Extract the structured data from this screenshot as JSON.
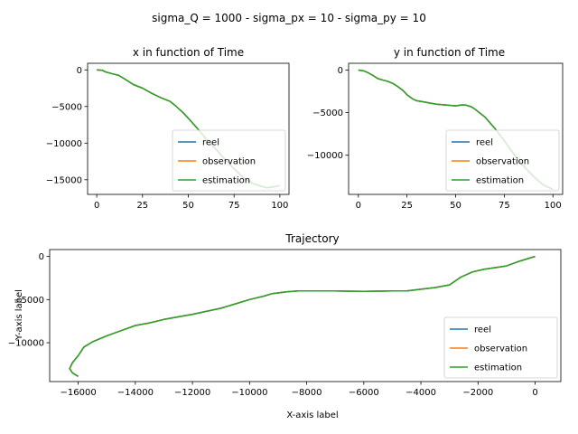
{
  "figure": {
    "suptitle": "sigma_Q = 1000 - sigma_px = 10 - sigma_py = 10"
  },
  "chart_data": [
    {
      "type": "line",
      "title": "x in function of Time",
      "xlabel": "",
      "ylabel": "",
      "xlim": [
        -5,
        105
      ],
      "ylim": [
        -17000,
        900
      ],
      "xticks": [
        0,
        25,
        50,
        75,
        100
      ],
      "xtick_labels": [
        "0",
        "25",
        "50",
        "75",
        "100"
      ],
      "yticks": [
        0,
        -5000,
        -10000,
        -15000
      ],
      "ytick_labels": [
        "0",
        "−5000",
        "−10000",
        "−15000"
      ],
      "grid": false,
      "legend_position": "lower-right",
      "x": [
        0,
        3,
        5,
        8,
        12,
        15,
        20,
        25,
        30,
        35,
        40,
        43,
        47,
        50,
        55,
        60,
        65,
        70,
        75,
        80,
        85,
        90,
        93,
        96,
        100
      ],
      "series": [
        {
          "name": "reel",
          "color": "#1f77b4",
          "values": [
            0,
            -50,
            -300,
            -500,
            -750,
            -1200,
            -2000,
            -2500,
            -3200,
            -3800,
            -4300,
            -4900,
            -5800,
            -6600,
            -8000,
            -9500,
            -10800,
            -12200,
            -13500,
            -14700,
            -15500,
            -15900,
            -16100,
            -16000,
            -15800
          ]
        },
        {
          "name": "observation",
          "color": "#ff7f0e",
          "values": [
            0,
            -50,
            -300,
            -500,
            -750,
            -1200,
            -2000,
            -2500,
            -3200,
            -3800,
            -4300,
            -4900,
            -5800,
            -6600,
            -8000,
            -9500,
            -10800,
            -12200,
            -13500,
            -14700,
            -15500,
            -15900,
            -16100,
            -16000,
            -15800
          ]
        },
        {
          "name": "estimation",
          "color": "#2ca02c",
          "values": [
            0,
            -50,
            -300,
            -500,
            -750,
            -1200,
            -2000,
            -2500,
            -3200,
            -3800,
            -4300,
            -4900,
            -5800,
            -6600,
            -8000,
            -9500,
            -10800,
            -12200,
            -13500,
            -14700,
            -15500,
            -15900,
            -16100,
            -16000,
            -15800
          ]
        }
      ]
    },
    {
      "type": "line",
      "title": "y in function of Time",
      "xlabel": "",
      "ylabel": "",
      "xlim": [
        -5,
        105
      ],
      "ylim": [
        -14600,
        800
      ],
      "xticks": [
        0,
        25,
        50,
        75,
        100
      ],
      "xtick_labels": [
        "0",
        "25",
        "50",
        "75",
        "100"
      ],
      "yticks": [
        0,
        -5000,
        -10000
      ],
      "ytick_labels": [
        "0",
        "−5000",
        "−10000"
      ],
      "grid": false,
      "legend_position": "lower-right",
      "x": [
        0,
        3,
        5,
        8,
        10,
        13,
        15,
        18,
        20,
        23,
        25,
        28,
        30,
        35,
        40,
        45,
        50,
        53,
        55,
        58,
        60,
        65,
        70,
        75,
        80,
        85,
        90,
        95,
        100
      ],
      "series": [
        {
          "name": "reel",
          "color": "#1f77b4",
          "values": [
            0,
            -100,
            -300,
            -700,
            -1000,
            -1200,
            -1300,
            -1600,
            -1900,
            -2400,
            -2900,
            -3400,
            -3600,
            -3800,
            -4000,
            -4100,
            -4200,
            -4100,
            -4100,
            -4300,
            -4600,
            -5500,
            -6800,
            -8300,
            -9900,
            -11300,
            -12500,
            -13500,
            -14000
          ]
        },
        {
          "name": "observation",
          "color": "#ff7f0e",
          "values": [
            0,
            -100,
            -300,
            -700,
            -1000,
            -1200,
            -1300,
            -1600,
            -1900,
            -2400,
            -2900,
            -3400,
            -3600,
            -3800,
            -4000,
            -4100,
            -4200,
            -4100,
            -4100,
            -4300,
            -4600,
            -5500,
            -6800,
            -8300,
            -9900,
            -11300,
            -12500,
            -13500,
            -14000
          ]
        },
        {
          "name": "estimation",
          "color": "#2ca02c",
          "values": [
            0,
            -100,
            -300,
            -700,
            -1000,
            -1200,
            -1300,
            -1600,
            -1900,
            -2400,
            -2900,
            -3400,
            -3600,
            -3800,
            -4000,
            -4100,
            -4200,
            -4100,
            -4100,
            -4300,
            -4600,
            -5500,
            -6800,
            -8300,
            -9900,
            -11300,
            -12500,
            -13500,
            -14000
          ]
        }
      ]
    },
    {
      "type": "line",
      "title": "Trajectory",
      "xlabel": "X-axis label",
      "ylabel": "Y-axis label",
      "xlim": [
        -17000,
        900
      ],
      "ylim": [
        -14500,
        800
      ],
      "xticks": [
        -16000,
        -14000,
        -12000,
        -10000,
        -8000,
        -6000,
        -4000,
        -2000,
        0
      ],
      "xtick_labels": [
        "−16000",
        "−14000",
        "−12000",
        "−10000",
        "−8000",
        "−6000",
        "−4000",
        "−2000",
        "0"
      ],
      "yticks": [
        0,
        -5000,
        -10000
      ],
      "ytick_labels": [
        "0",
        "−5000",
        "−10000"
      ],
      "grid": false,
      "legend_position": "lower-right",
      "series": [
        {
          "name": "reel",
          "color": "#1f77b4",
          "x": [
            0,
            -200,
            -600,
            -1000,
            -1400,
            -1800,
            -2200,
            -2600,
            -3000,
            -3500,
            -4000,
            -4500,
            -5000,
            -6000,
            -7000,
            -7800,
            -8300,
            -8700,
            -9200,
            -9500,
            -10000,
            -10500,
            -11000,
            -12000,
            -13000,
            -13500,
            -14000,
            -14500,
            -15000,
            -15500,
            -15800,
            -16000,
            -16200,
            -16300,
            -16200,
            -16000
          ],
          "y": [
            0,
            -200,
            -600,
            -1100,
            -1300,
            -1500,
            -1800,
            -2400,
            -3300,
            -3600,
            -3800,
            -4000,
            -4000,
            -4050,
            -4000,
            -4000,
            -4000,
            -4100,
            -4300,
            -4600,
            -5000,
            -5500,
            -6000,
            -6700,
            -7300,
            -7700,
            -8000,
            -8600,
            -9200,
            -9900,
            -10500,
            -11500,
            -12300,
            -13000,
            -13500,
            -13900
          ]
        },
        {
          "name": "observation",
          "color": "#ff7f0e",
          "x": [
            0,
            -200,
            -600,
            -1000,
            -1400,
            -1800,
            -2200,
            -2600,
            -3000,
            -3500,
            -4000,
            -4500,
            -5000,
            -6000,
            -7000,
            -7800,
            -8300,
            -8700,
            -9200,
            -9500,
            -10000,
            -10500,
            -11000,
            -12000,
            -13000,
            -13500,
            -14000,
            -14500,
            -15000,
            -15500,
            -15800,
            -16000,
            -16200,
            -16300,
            -16200,
            -16000
          ],
          "y": [
            0,
            -200,
            -600,
            -1100,
            -1300,
            -1500,
            -1800,
            -2400,
            -3300,
            -3600,
            -3800,
            -4000,
            -4000,
            -4050,
            -4000,
            -4000,
            -4000,
            -4100,
            -4300,
            -4600,
            -5000,
            -5500,
            -6000,
            -6700,
            -7300,
            -7700,
            -8000,
            -8600,
            -9200,
            -9900,
            -10500,
            -11500,
            -12300,
            -13000,
            -13500,
            -13900
          ]
        },
        {
          "name": "estimation",
          "color": "#2ca02c",
          "x": [
            0,
            -200,
            -600,
            -1000,
            -1400,
            -1800,
            -2200,
            -2600,
            -3000,
            -3500,
            -4000,
            -4500,
            -5000,
            -6000,
            -7000,
            -7800,
            -8300,
            -8700,
            -9200,
            -9500,
            -10000,
            -10500,
            -11000,
            -12000,
            -13000,
            -13500,
            -14000,
            -14500,
            -15000,
            -15500,
            -15800,
            -16000,
            -16200,
            -16300,
            -16200,
            -16000
          ],
          "y": [
            0,
            -200,
            -600,
            -1100,
            -1300,
            -1500,
            -1800,
            -2400,
            -3300,
            -3600,
            -3800,
            -4000,
            -4000,
            -4050,
            -4000,
            -4000,
            -4000,
            -4100,
            -4300,
            -4600,
            -5000,
            -5500,
            -6000,
            -6700,
            -7300,
            -7700,
            -8000,
            -8600,
            -9200,
            -9900,
            -10500,
            -11500,
            -12300,
            -13000,
            -13500,
            -13900
          ]
        }
      ]
    }
  ]
}
